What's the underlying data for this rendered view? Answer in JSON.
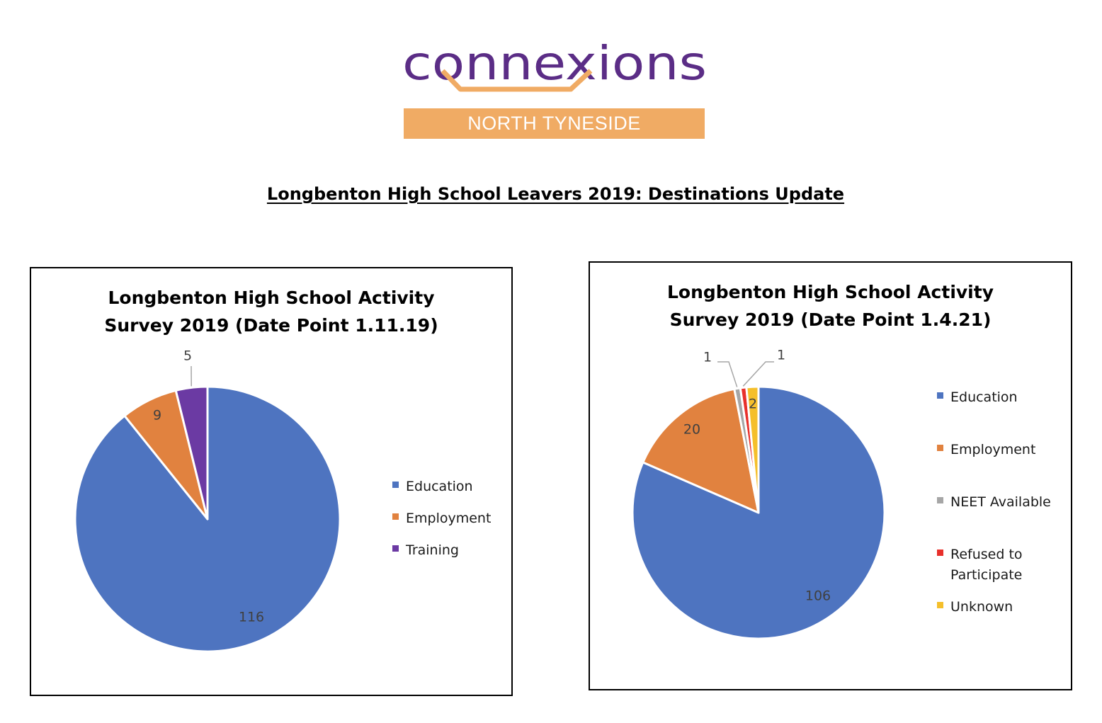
{
  "header": {
    "logo_text": "connexions",
    "logo_subtitle": "NORTH TYNESIDE",
    "logo_purple": "#5b2d86",
    "logo_orange": "#f0ab64",
    "page_title": "Longbenton High School Leavers 2019: Destinations Update"
  },
  "colors": {
    "Education": "#4e74c0",
    "Employment": "#e1823f",
    "Training": "#6b3aa3",
    "NEET Available": "#a6a6a6",
    "Refused to Participate": "#e8302b",
    "Unknown": "#f5bf2b"
  },
  "chart_data": [
    {
      "type": "pie",
      "title": "Longbenton High School Activity Survey 2019 (Date Point 1.11.19)",
      "categories": [
        "Education",
        "Employment",
        "Training"
      ],
      "values": [
        116,
        9,
        5
      ],
      "legend": "right"
    },
    {
      "type": "pie",
      "title": "Longbenton High School Activity Survey 2019 (Date Point 1.4.21)",
      "categories": [
        "Education",
        "Employment",
        "NEET Available",
        "Refused to Participate",
        "Unknown"
      ],
      "values": [
        106,
        20,
        1,
        1,
        2
      ],
      "legend": "right"
    }
  ]
}
